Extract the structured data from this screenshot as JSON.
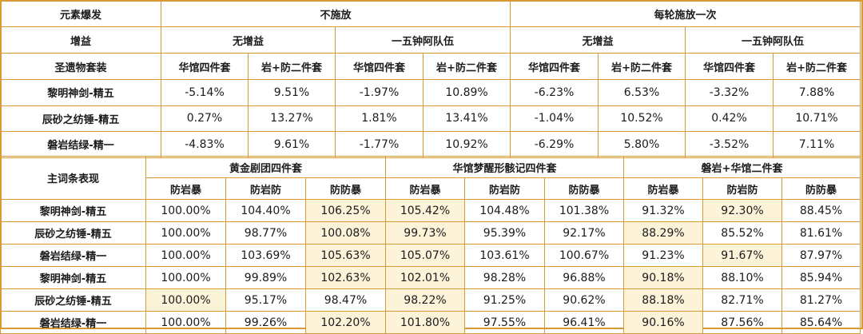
{
  "top": {
    "row_label_header": "元素爆发",
    "scenarios": [
      "不施放",
      "每轮施放一次"
    ],
    "buff_label": "增益",
    "buffs": [
      "无增益",
      "一五钟阿队伍",
      "无增益",
      "一五钟阿队伍"
    ],
    "set_label": "圣遗物套装",
    "sets": [
      "华馆四件套",
      "岩+防二件套",
      "华馆四件套",
      "岩+防二件套",
      "华馆四件套",
      "岩+防二件套",
      "华馆四件套",
      "岩+防二件套"
    ],
    "rows": [
      {
        "label": "黎明神剑-精五",
        "values": [
          "-5.14%",
          "9.51%",
          "-1.97%",
          "10.89%",
          "-6.23%",
          "6.53%",
          "-3.32%",
          "7.88%"
        ]
      },
      {
        "label": "辰砂之纺锤-精五",
        "values": [
          "0.27%",
          "13.27%",
          "1.81%",
          "13.41%",
          "-1.04%",
          "10.52%",
          "0.42%",
          "10.71%"
        ]
      },
      {
        "label": "磐岩结绿-精一",
        "values": [
          "-4.83%",
          "9.61%",
          "-1.77%",
          "10.92%",
          "-6.29%",
          "5.80%",
          "-3.52%",
          "7.11%"
        ]
      }
    ]
  },
  "bottom": {
    "row_label_header": "主词条表现",
    "groups": [
      "黄金剧团四件套",
      "华馆梦醒形骸记四件套",
      "磐岩+华馆二件套"
    ],
    "sub_headers": [
      "防岩暴",
      "防岩防",
      "防防暴",
      "防岩暴",
      "防岩防",
      "防防暴",
      "防岩暴",
      "防岩防",
      "防防暴"
    ],
    "rows": [
      {
        "label": "黎明神剑-精五",
        "values": [
          "100.00%",
          "104.40%",
          "106.25%",
          "105.42%",
          "104.48%",
          "101.38%",
          "91.32%",
          "92.30%",
          "88.45%"
        ],
        "highlight": [
          false,
          false,
          true,
          true,
          false,
          false,
          false,
          true,
          false
        ]
      },
      {
        "label": "辰砂之纺锤-精五",
        "values": [
          "100.00%",
          "98.77%",
          "100.08%",
          "99.73%",
          "95.39%",
          "92.17%",
          "88.29%",
          "85.52%",
          "81.61%"
        ],
        "highlight": [
          false,
          false,
          true,
          true,
          false,
          false,
          true,
          false,
          false
        ]
      },
      {
        "label": "磐岩结绿-精一",
        "values": [
          "100.00%",
          "103.69%",
          "105.63%",
          "105.07%",
          "103.61%",
          "100.67%",
          "91.23%",
          "91.67%",
          "87.97%"
        ],
        "highlight": [
          false,
          false,
          true,
          true,
          false,
          false,
          false,
          true,
          false
        ]
      },
      {
        "label": "黎明神剑-精五",
        "values": [
          "100.00%",
          "99.89%",
          "102.63%",
          "102.01%",
          "98.28%",
          "96.88%",
          "90.18%",
          "88.10%",
          "85.94%"
        ],
        "highlight": [
          false,
          false,
          true,
          true,
          false,
          false,
          true,
          false,
          false
        ]
      },
      {
        "label": "辰砂之纺锤-精五",
        "values": [
          "100.00%",
          "95.17%",
          "98.47%",
          "98.22%",
          "91.25%",
          "90.62%",
          "88.18%",
          "82.71%",
          "81.27%"
        ],
        "highlight": [
          true,
          false,
          false,
          true,
          false,
          false,
          true,
          false,
          false
        ]
      },
      {
        "label": "磐岩结绿-精一",
        "values": [
          "100.00%",
          "99.26%",
          "102.20%",
          "101.80%",
          "97.55%",
          "96.41%",
          "90.16%",
          "87.56%",
          "85.64%"
        ],
        "highlight": [
          false,
          false,
          true,
          true,
          false,
          false,
          true,
          false,
          false
        ]
      }
    ]
  }
}
